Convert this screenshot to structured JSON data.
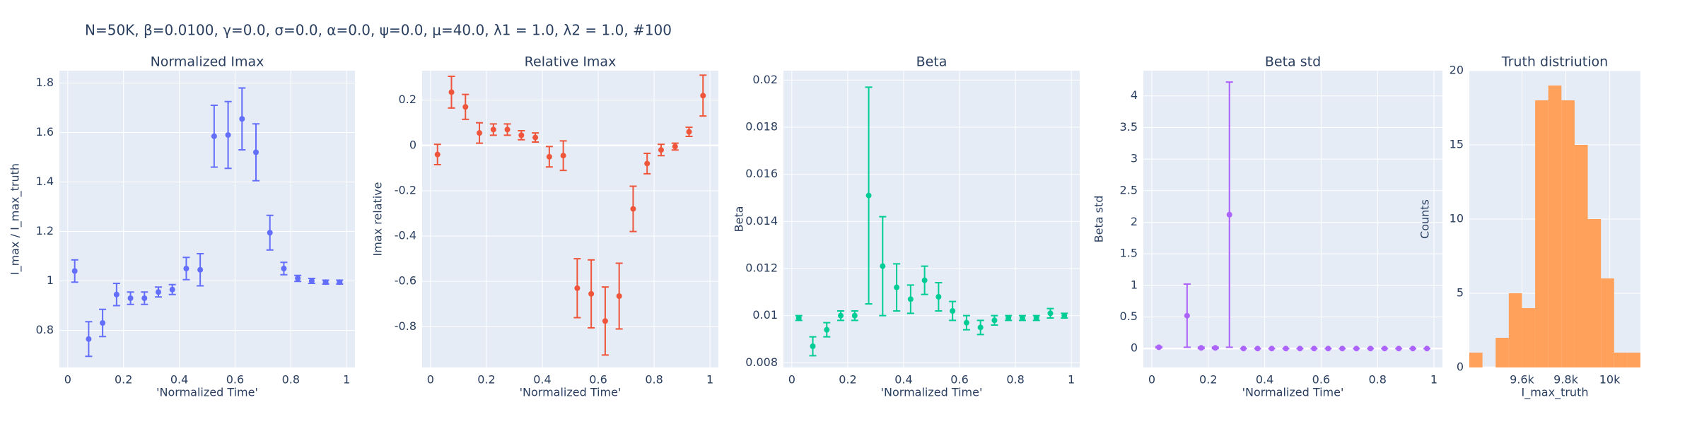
{
  "title": "N=50K, β=0.0100, γ=0.0, σ=0.0,  α=0.0, ψ=0.0, μ=40.0, λ1 = 1.0, λ2 = 1.0, #100",
  "chart_data": [
    {
      "type": "scatter",
      "title": "Normalized Imax",
      "xlabel": "'Normalized Time'",
      "ylabel": "I_max / I_max_truth",
      "color": "#636efa",
      "x": [
        0.025,
        0.075,
        0.125,
        0.175,
        0.225,
        0.275,
        0.325,
        0.375,
        0.425,
        0.475,
        0.525,
        0.575,
        0.625,
        0.675,
        0.725,
        0.775,
        0.825,
        0.875,
        0.925,
        0.975
      ],
      "values": [
        1.04,
        0.765,
        0.83,
        0.945,
        0.93,
        0.93,
        0.955,
        0.965,
        1.05,
        1.045,
        1.585,
        1.59,
        1.655,
        1.52,
        1.195,
        1.05,
        1.01,
        1.0,
        0.995,
        0.995
      ],
      "errors": [
        0.045,
        0.07,
        0.055,
        0.045,
        0.025,
        0.025,
        0.02,
        0.02,
        0.045,
        0.065,
        0.125,
        0.135,
        0.125,
        0.115,
        0.07,
        0.025,
        0.012,
        0.01,
        0.008,
        0.008
      ],
      "xlim": [
        -0.03,
        1.03
      ],
      "xticks": [
        0,
        0.2,
        0.4,
        0.6,
        0.8,
        1
      ],
      "ylim": [
        0.65,
        1.85
      ],
      "yticks": [
        0.8,
        1,
        1.2,
        1.4,
        1.6,
        1.8
      ]
    },
    {
      "type": "scatter",
      "title": "Relative Imax",
      "xlabel": "'Normalized Time'",
      "ylabel": "Imax relative",
      "color": "#ef553b",
      "x": [
        0.025,
        0.075,
        0.125,
        0.175,
        0.225,
        0.275,
        0.325,
        0.375,
        0.425,
        0.475,
        0.525,
        0.575,
        0.625,
        0.675,
        0.725,
        0.775,
        0.825,
        0.875,
        0.925,
        0.975
      ],
      "values": [
        -0.04,
        0.235,
        0.17,
        0.055,
        0.07,
        0.07,
        0.045,
        0.035,
        -0.05,
        -0.045,
        -0.63,
        -0.655,
        -0.775,
        -0.665,
        -0.28,
        -0.08,
        -0.02,
        -0.005,
        0.06,
        0.22
      ],
      "errors": [
        0.045,
        0.07,
        0.055,
        0.045,
        0.025,
        0.025,
        0.02,
        0.02,
        0.045,
        0.065,
        0.13,
        0.15,
        0.15,
        0.145,
        0.1,
        0.045,
        0.025,
        0.015,
        0.02,
        0.09
      ],
      "xlim": [
        -0.03,
        1.03
      ],
      "xticks": [
        0,
        0.2,
        0.4,
        0.6,
        0.8,
        1
      ],
      "ylim": [
        -0.98,
        0.33
      ],
      "yticks": [
        -0.8,
        -0.6,
        -0.4,
        -0.2,
        0,
        0.2
      ]
    },
    {
      "type": "scatter",
      "title": "Beta",
      "xlabel": "'Normalized Time'",
      "ylabel": "Beta",
      "color": "#00cc96",
      "x": [
        0.025,
        0.075,
        0.125,
        0.175,
        0.225,
        0.275,
        0.325,
        0.375,
        0.425,
        0.475,
        0.525,
        0.575,
        0.625,
        0.675,
        0.725,
        0.775,
        0.825,
        0.875,
        0.925,
        0.975
      ],
      "values": [
        0.0099,
        0.0087,
        0.0094,
        0.01,
        0.01,
        0.0151,
        0.0121,
        0.0112,
        0.0107,
        0.0115,
        0.0108,
        0.0102,
        0.0097,
        0.0095,
        0.0098,
        0.0099,
        0.0099,
        0.0099,
        0.0101,
        0.01
      ],
      "errors": [
        0.0001,
        0.0004,
        0.0003,
        0.0002,
        0.0002,
        0.0046,
        0.0021,
        0.001,
        0.0006,
        0.0006,
        0.0006,
        0.0004,
        0.0003,
        0.0003,
        0.0002,
        0.0001,
        0.0001,
        0.0001,
        0.0002,
        0.0001
      ],
      "xlim": [
        -0.03,
        1.03
      ],
      "xticks": [
        0,
        0.2,
        0.4,
        0.6,
        0.8,
        1
      ],
      "ylim": [
        0.0078,
        0.0204
      ],
      "yticks": [
        0.008,
        0.01,
        0.012,
        0.014,
        0.016,
        0.018,
        0.02
      ]
    },
    {
      "type": "scatter",
      "title": "Beta std",
      "xlabel": "'Normalized Time'",
      "ylabel": "Beta std",
      "color": "#ab63fa",
      "x": [
        0.025,
        0.075,
        0.125,
        0.175,
        0.225,
        0.275,
        0.325,
        0.375,
        0.425,
        0.475,
        0.525,
        0.575,
        0.625,
        0.675,
        0.725,
        0.775,
        0.825,
        0.875,
        0.925,
        0.975
      ],
      "values": [
        0.02,
        null,
        0.52,
        0.01,
        0.01,
        2.12,
        0,
        0,
        0,
        0,
        0,
        0,
        0,
        0,
        0,
        0,
        0,
        0,
        0,
        0
      ],
      "errors": [
        0.01,
        null,
        0.5,
        0.01,
        0.01,
        2.1,
        0,
        0,
        0,
        0,
        0,
        0,
        0,
        0,
        0,
        0,
        0,
        0,
        0,
        0
      ],
      "xlim": [
        -0.03,
        1.03
      ],
      "xticks": [
        0,
        0.2,
        0.4,
        0.6,
        0.8,
        1
      ],
      "ylim": [
        -0.3,
        4.4
      ],
      "yticks": [
        0,
        0.5,
        1,
        1.5,
        2,
        2.5,
        3,
        3.5,
        4
      ]
    },
    {
      "type": "histogram",
      "title": "Truth distriution",
      "xlabel": "I_max_truth",
      "ylabel": "Counts",
      "color": "#ffa15a",
      "bins": [
        9360,
        9420,
        9480,
        9540,
        9600,
        9660,
        9720,
        9780,
        9840,
        9900,
        9960,
        10020,
        10080,
        10140
      ],
      "values": [
        1,
        0,
        2,
        5,
        4,
        18,
        19,
        18,
        15,
        10,
        6,
        1,
        1
      ],
      "xlim": [
        9360,
        10140
      ],
      "xticks": [
        {
          "value": 9600,
          "label": "9.6k"
        },
        {
          "value": 9800,
          "label": "9.8k"
        },
        {
          "value": 10000,
          "label": "10k"
        }
      ],
      "ylim": [
        0,
        20
      ],
      "yticks": [
        0,
        5,
        10,
        15,
        20
      ]
    }
  ]
}
